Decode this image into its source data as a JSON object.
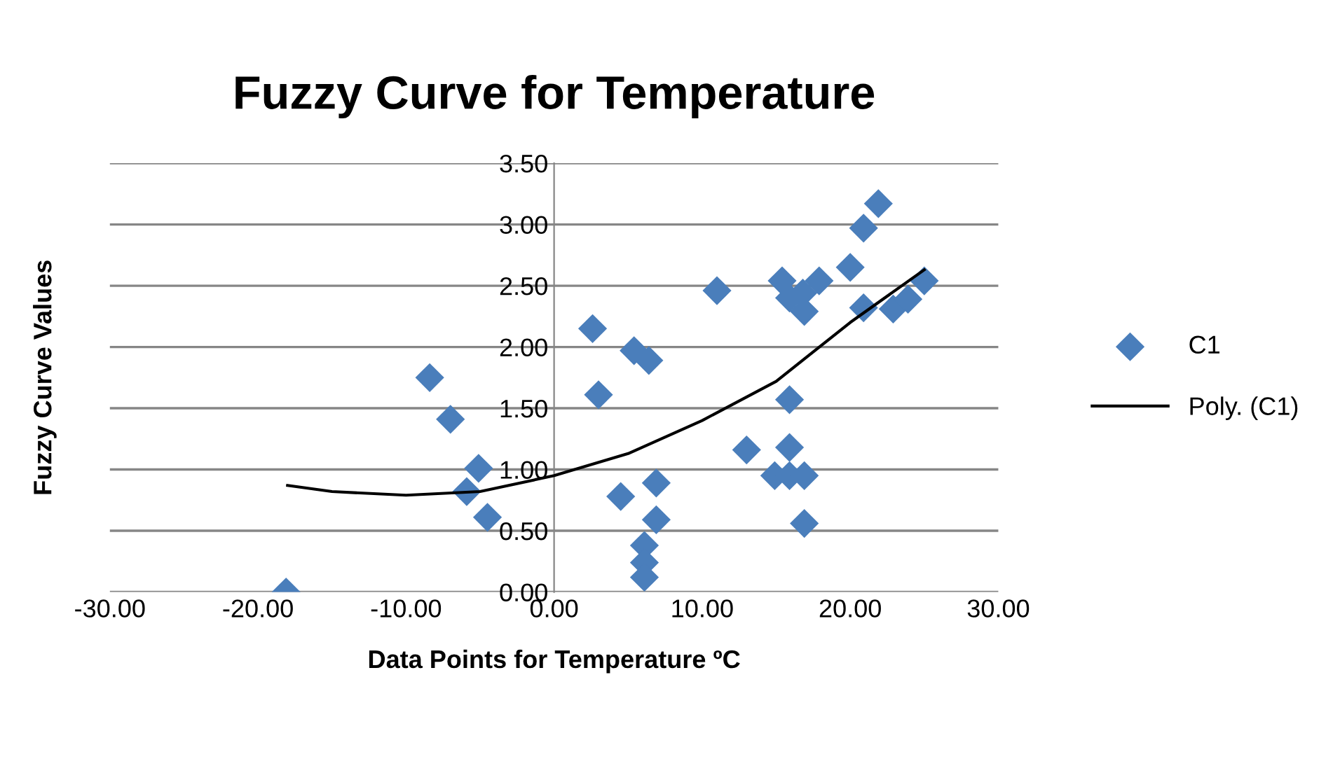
{
  "chart_data": {
    "type": "scatter",
    "title": "Fuzzy Curve for Temperature",
    "xlabel": "Data Points for Temperature ºC",
    "ylabel": "Fuzzy Curve Values",
    "xlim": [
      -30,
      30
    ],
    "xticks": [
      {
        "value": -30,
        "label": "-30.00"
      },
      {
        "value": -20,
        "label": "-20.00"
      },
      {
        "value": -10,
        "label": "-10.00"
      },
      {
        "value": 0,
        "label": "0.00"
      },
      {
        "value": 10,
        "label": "10.00"
      },
      {
        "value": 20,
        "label": "20.00"
      },
      {
        "value": 30,
        "label": "30.00"
      }
    ],
    "ylim": [
      0,
      3.5
    ],
    "yticks": [
      {
        "value": 0,
        "label": "0.00"
      },
      {
        "value": 0.5,
        "label": "0.50"
      },
      {
        "value": 1,
        "label": "1.00"
      },
      {
        "value": 1.5,
        "label": "1.50"
      },
      {
        "value": 2,
        "label": "2.00"
      },
      {
        "value": 2.5,
        "label": "2.50"
      },
      {
        "value": 3,
        "label": "3.00"
      },
      {
        "value": 3.5,
        "label": "3.50"
      }
    ],
    "grid": "y",
    "legend": "right",
    "series": [
      {
        "name": "C1",
        "color": "#4a7ebb",
        "marker": "diamond",
        "x": [
          -18.1,
          -8.4,
          -7.0,
          -5.1,
          -5.9,
          -4.5,
          2.6,
          3.0,
          5.4,
          6.4,
          4.5,
          6.9,
          6.9,
          6.1,
          6.1,
          6.1,
          11.0,
          13.0,
          14.9,
          15.9,
          16.9,
          15.9,
          15.9,
          16.9,
          15.4,
          15.9,
          16.8,
          16.9,
          17.9,
          20.0,
          20.9,
          21.9,
          20.9,
          22.9,
          23.9,
          25.0
        ],
        "values": [
          0,
          1.75,
          1.41,
          1.01,
          0.82,
          0.61,
          2.15,
          1.61,
          1.97,
          1.89,
          0.78,
          0.89,
          0.59,
          0.38,
          0.24,
          0.12,
          2.46,
          1.16,
          0.95,
          0.95,
          0.95,
          1.57,
          1.18,
          0.56,
          2.54,
          2.4,
          2.44,
          2.29,
          2.54,
          2.65,
          2.97,
          3.17,
          2.32,
          2.31,
          2.39,
          2.54
        ]
      },
      {
        "name": "Poly. (C1)",
        "type": "line",
        "color": "#000000",
        "marker": "none",
        "line_style": "solid",
        "x": [
          -18,
          -15,
          -10,
          -5,
          0,
          5,
          10,
          15,
          20,
          25
        ],
        "values": [
          0.87,
          0.82,
          0.79,
          0.82,
          0.95,
          1.13,
          1.4,
          1.72,
          2.2,
          2.63
        ]
      }
    ]
  }
}
